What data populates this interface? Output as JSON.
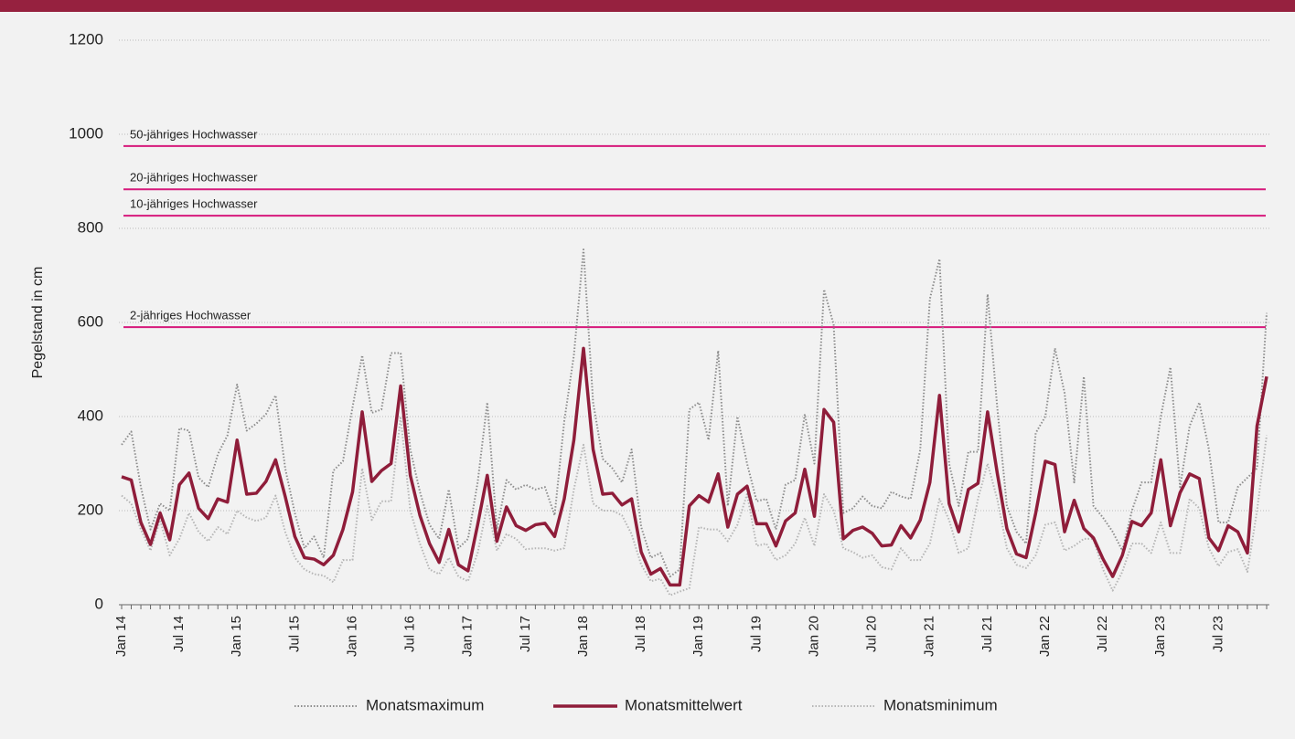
{
  "chart_data": {
    "type": "line",
    "ylabel": "Pegelstand in cm",
    "ylim": [
      0,
      1200
    ],
    "yticks": [
      0,
      200,
      400,
      600,
      800,
      1000,
      1200
    ],
    "grid": true,
    "categories": [
      "Jan 14",
      null,
      null,
      null,
      null,
      null,
      "Jul 14",
      null,
      null,
      null,
      null,
      null,
      "Jan 15",
      null,
      null,
      null,
      null,
      null,
      "Jul 15",
      null,
      null,
      null,
      null,
      null,
      "Jan 16",
      null,
      null,
      null,
      null,
      null,
      "Jul 16",
      null,
      null,
      null,
      null,
      null,
      "Jan 17",
      null,
      null,
      null,
      null,
      null,
      "Jul 17",
      null,
      null,
      null,
      null,
      null,
      "Jan 18",
      null,
      null,
      null,
      null,
      null,
      "Jul 18",
      null,
      null,
      null,
      null,
      null,
      "Jan 19",
      null,
      null,
      null,
      null,
      null,
      "Jul 19",
      null,
      null,
      null,
      null,
      null,
      "Jan 20",
      null,
      null,
      null,
      null,
      null,
      "Jul 20",
      null,
      null,
      null,
      null,
      null,
      "Jan 21",
      null,
      null,
      null,
      null,
      null,
      "Jul 21",
      null,
      null,
      null,
      null,
      null,
      "Jan 22",
      null,
      null,
      null,
      null,
      null,
      "Jul 22",
      null,
      null,
      null,
      null,
      null,
      "Jan 23",
      null,
      null,
      null,
      null,
      null,
      "Jul 23",
      null,
      null,
      null,
      null,
      null
    ],
    "series": [
      {
        "name": "Monatsmaximum",
        "color": "#8c8c8c",
        "style": "dotted",
        "values": [
          340,
          368,
          250,
          160,
          215,
          200,
          375,
          370,
          270,
          250,
          320,
          360,
          468,
          370,
          385,
          405,
          445,
          290,
          195,
          120,
          145,
          100,
          285,
          305,
          420,
          530,
          408,
          415,
          535,
          535,
          330,
          240,
          170,
          140,
          245,
          120,
          140,
          260,
          430,
          160,
          265,
          245,
          255,
          245,
          250,
          190,
          390,
          530,
          755,
          430,
          310,
          290,
          260,
          330,
          165,
          100,
          110,
          60,
          75,
          415,
          430,
          350,
          540,
          210,
          400,
          300,
          220,
          225,
          160,
          255,
          265,
          405,
          300,
          670,
          595,
          195,
          205,
          230,
          210,
          205,
          240,
          230,
          225,
          330,
          650,
          735,
          300,
          210,
          325,
          325,
          660,
          420,
          210,
          155,
          130,
          365,
          400,
          545,
          450,
          260,
          485,
          210,
          185,
          155,
          115,
          200,
          260,
          260,
          400,
          505,
          250,
          380,
          430,
          330,
          175,
          175,
          250,
          270,
          290,
          620
        ]
      },
      {
        "name": "Monatsmittelwert",
        "color": "#8f1d3a",
        "style": "solid",
        "values": [
          272,
          265,
          175,
          128,
          195,
          138,
          255,
          280,
          205,
          183,
          225,
          218,
          350,
          235,
          237,
          262,
          308,
          230,
          145,
          100,
          97,
          85,
          105,
          160,
          240,
          410,
          262,
          285,
          300,
          465,
          275,
          190,
          130,
          90,
          160,
          85,
          72,
          170,
          275,
          135,
          208,
          168,
          158,
          170,
          173,
          145,
          225,
          350,
          545,
          330,
          235,
          237,
          212,
          225,
          112,
          65,
          77,
          42,
          42,
          210,
          232,
          218,
          278,
          165,
          235,
          252,
          172,
          172,
          125,
          178,
          195,
          288,
          188,
          415,
          388,
          140,
          158,
          165,
          152,
          125,
          127,
          168,
          142,
          180,
          260,
          445,
          215,
          155,
          245,
          258,
          410,
          280,
          162,
          108,
          100,
          195,
          305,
          298,
          155,
          222,
          162,
          142,
          97,
          60,
          105,
          177,
          168,
          195,
          308,
          168,
          238,
          278,
          268,
          142,
          115,
          168,
          155,
          110,
          380,
          485
        ]
      },
      {
        "name": "Monatsminimum",
        "color": "#b5b5b5",
        "style": "dotted",
        "values": [
          232,
          215,
          160,
          115,
          180,
          105,
          140,
          195,
          155,
          135,
          165,
          150,
          200,
          185,
          178,
          185,
          232,
          155,
          100,
          75,
          65,
          62,
          48,
          95,
          95,
          290,
          180,
          220,
          220,
          400,
          200,
          130,
          75,
          65,
          100,
          60,
          50,
          110,
          210,
          115,
          150,
          140,
          118,
          120,
          120,
          115,
          120,
          245,
          340,
          215,
          200,
          200,
          190,
          150,
          85,
          50,
          55,
          20,
          28,
          35,
          165,
          160,
          160,
          135,
          170,
          235,
          125,
          130,
          95,
          105,
          130,
          185,
          125,
          235,
          200,
          120,
          112,
          100,
          105,
          80,
          75,
          120,
          95,
          95,
          130,
          225,
          180,
          110,
          120,
          225,
          300,
          225,
          120,
          85,
          78,
          105,
          170,
          175,
          115,
          125,
          140,
          140,
          75,
          30,
          70,
          130,
          130,
          110,
          175,
          110,
          110,
          225,
          205,
          120,
          82,
          112,
          118,
          70,
          200,
          360
        ]
      }
    ],
    "reference_lines": [
      {
        "label": "50-jähriges Hochwasser",
        "value": 975
      },
      {
        "label": "20-jähriges Hochwasser",
        "value": 883
      },
      {
        "label": "10-jähriges Hochwasser",
        "value": 827
      },
      {
        "label": "2-jähriges Hochwasser",
        "value": 590
      }
    ],
    "reference_color": "#d6197b",
    "legend": "bottom"
  }
}
